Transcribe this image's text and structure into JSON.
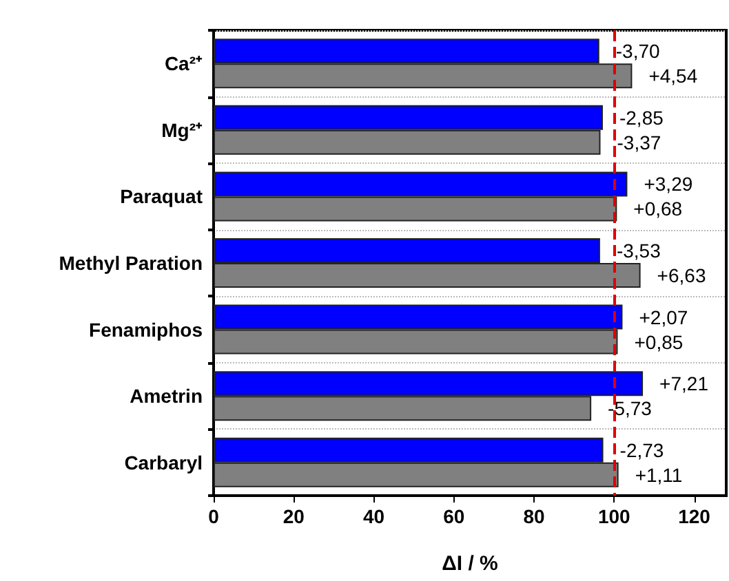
{
  "chart_data": {
    "type": "bar",
    "orientation": "horizontal",
    "xlabel": "ΔI / %",
    "categories": [
      "Ca²⁺",
      "Mg²⁺",
      "Paraquat",
      "Methyl Paration",
      "Fenamiphos",
      "Ametrin",
      "Carbaryl"
    ],
    "series": [
      {
        "color": "#0000ff",
        "values": [
          96.3,
          97.2,
          103.3,
          96.5,
          102.1,
          107.2,
          97.3
        ]
      },
      {
        "color": "#808080",
        "values": [
          104.5,
          96.6,
          100.7,
          106.6,
          100.9,
          94.3,
          101.1
        ]
      }
    ],
    "annotations": [
      {
        "text": "-3,70",
        "x": 96.3,
        "y": "Ca²⁺"
      },
      {
        "text": "+4,54",
        "x": 104.5,
        "y": "Ca²⁺"
      },
      {
        "text": "-2,85",
        "x": 97.2,
        "y": "Mg²⁺"
      },
      {
        "text": "-3,37",
        "x": 96.6,
        "y": "Mg²⁺"
      },
      {
        "text": "+3,29",
        "x": 103.3,
        "y": "Paraquat"
      },
      {
        "text": "+0,68",
        "x": 100.7,
        "y": "Paraquat"
      },
      {
        "text": "-3,53",
        "x": 96.5,
        "y": "Methyl Paration"
      },
      {
        "text": "+6,63",
        "x": 106.6,
        "y": "Methyl Paration"
      },
      {
        "text": "+2,07",
        "x": 102.1,
        "y": "Fenamiphos"
      },
      {
        "text": "+0,85",
        "x": 100.9,
        "y": "Fenamiphos"
      },
      {
        "text": "+7,21",
        "x": 107.2,
        "y": "Ametrin"
      },
      {
        "text": "-5,73",
        "x": 94.3,
        "y": "Ametrin"
      },
      {
        "text": "-2,73",
        "x": 97.3,
        "y": "Carbaryl"
      },
      {
        "text": "+1,11",
        "x": 101.1,
        "y": "Carbaryl"
      }
    ],
    "xlim": [
      0,
      128
    ],
    "xticks": [
      0,
      20,
      40,
      60,
      80,
      100,
      120
    ],
    "ref_lines": [
      {
        "axis": "x",
        "value": 100,
        "color": "#e00000",
        "line_style": "dashed"
      }
    ],
    "grid": "y"
  }
}
